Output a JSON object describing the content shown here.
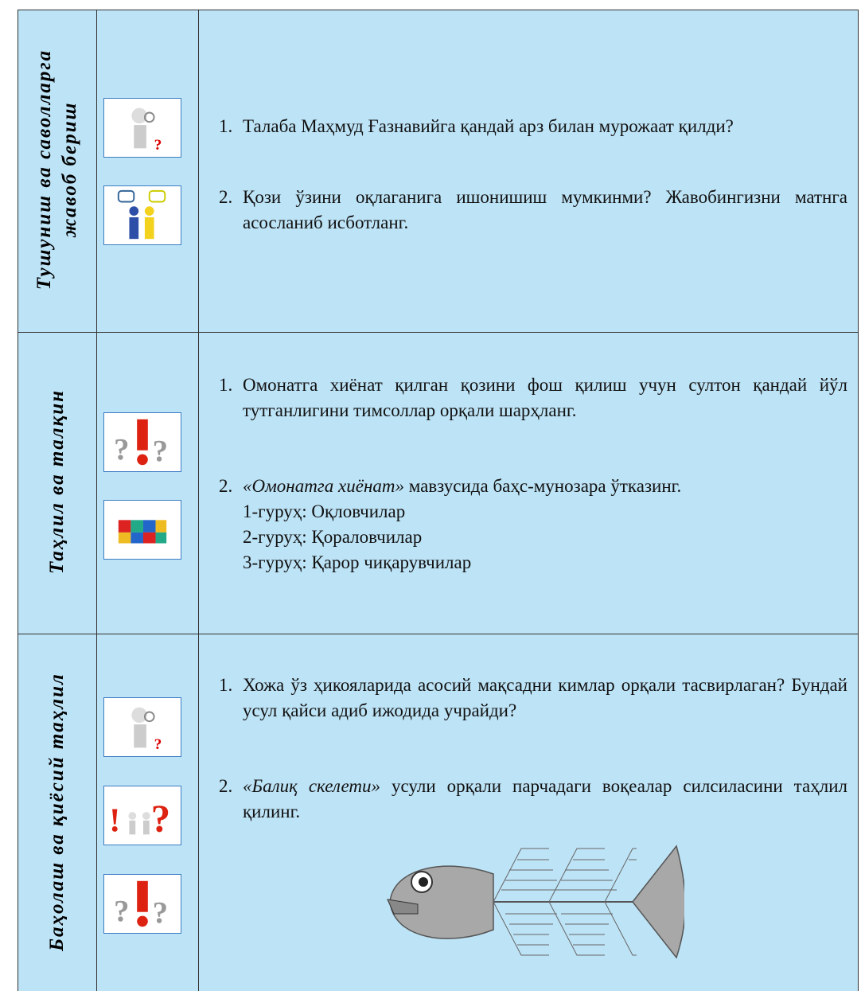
{
  "table": {
    "rows": [
      {
        "label_lines": [
          "Тушуниш ва саволларга",
          "жавоб бериш"
        ],
        "items": [
          {
            "number": "1.",
            "text": "Талаба Маҳмуд Ғазнавийга қандай арз билан мурожаат қилди?"
          },
          {
            "number": "2.",
            "text": "Қози ўзини оқлаганига ишонишиш мумкинми? Жавобингизни матнга асосланиб исботланг."
          }
        ]
      },
      {
        "label_lines": [
          "Таҳлил ва талқин"
        ],
        "items": [
          {
            "number": "1.",
            "text": "Омонатга хиёнат қилган қозини фош қилиш учун султон қандай йўл тутганлигини тимсоллар орқали шарҳланг."
          },
          {
            "number": "2.",
            "quote": "«Омонатга хиёнат»",
            "text": "мавзусида баҳс-мунозара ўтказинг.",
            "groups": [
              "1-гуруҳ: Оқловчилар",
              "2-гуруҳ: Қораловчилар",
              "3-гуруҳ: Қарор чиқарувчилар"
            ]
          }
        ]
      },
      {
        "label_lines": [
          "Баҳолаш ва қиёсий таҳлил"
        ],
        "items": [
          {
            "number": "1.",
            "text": "Хожа ўз ҳикояларида асосий мақсадни кимлар орқали тасвирлаган? Бундай усул қайси адиб ижодида учрайди?"
          },
          {
            "number": "2.",
            "quote": "«Балиқ скелети»",
            "text": "усули орқали парчадаги воқеалар силсиласини таҳлил қилинг."
          }
        ]
      }
    ]
  }
}
